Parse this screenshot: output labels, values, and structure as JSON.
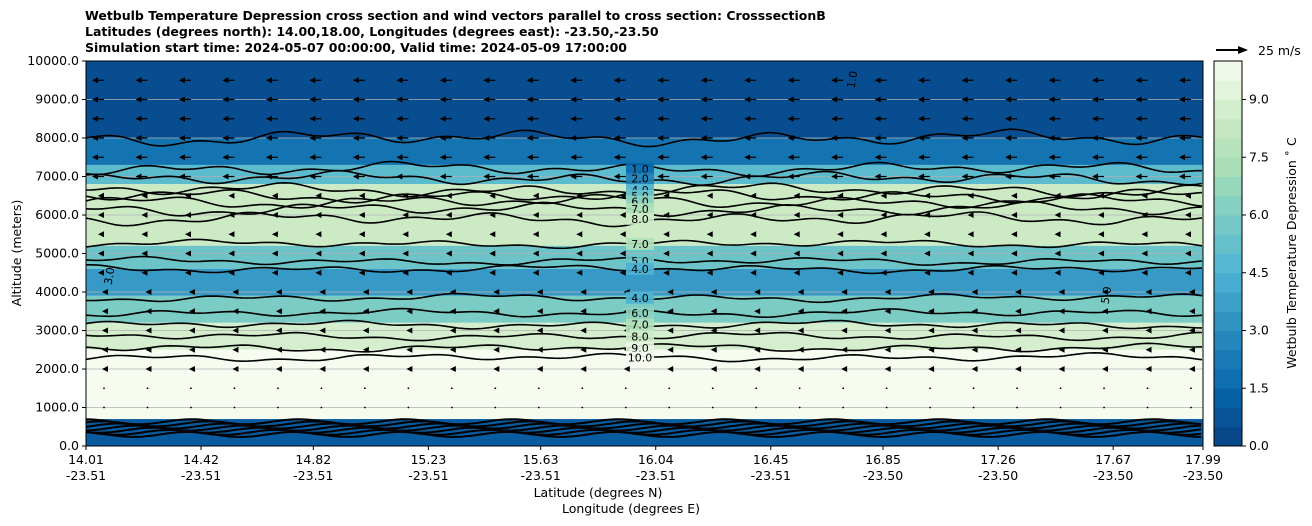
{
  "chart_data": {
    "type": "contour-cross-section",
    "title_lines": [
      "Wetbulb Temperature Depression cross section and wind vectors parallel to cross section: CrosssectionB",
      "Latitudes (degrees north): 14.00,18.00, Longitudes (degrees east): -23.50,-23.50",
      "Simulation start time: 2024-05-07 00:00:00, Valid time: 2024-05-09 17:00:00"
    ],
    "ylabel": "Altitude (meters)",
    "xlabel_lat": "Latitude (degrees N)",
    "xlabel_lon": "Longitude (degrees E)",
    "ylim": [
      0,
      10000
    ],
    "y_ticks": [
      "0.0",
      "1000.0",
      "2000.0",
      "3000.0",
      "4000.0",
      "5000.0",
      "6000.0",
      "7000.0",
      "8000.0",
      "9000.0",
      "10000.0"
    ],
    "x_ticks": [
      {
        "lat": "14.01",
        "lon": "-23.51"
      },
      {
        "lat": "14.42",
        "lon": "-23.51"
      },
      {
        "lat": "14.82",
        "lon": "-23.51"
      },
      {
        "lat": "15.23",
        "lon": "-23.51"
      },
      {
        "lat": "15.63",
        "lon": "-23.51"
      },
      {
        "lat": "16.04",
        "lon": "-23.51"
      },
      {
        "lat": "16.45",
        "lon": "-23.51"
      },
      {
        "lat": "16.85",
        "lon": "-23.50"
      },
      {
        "lat": "17.26",
        "lon": "-23.50"
      },
      {
        "lat": "17.67",
        "lon": "-23.50"
      },
      {
        "lat": "17.99",
        "lon": "-23.50"
      }
    ],
    "colorbar": {
      "label": "Wetbulb Temperature Depression ˚ C",
      "range": [
        0,
        10
      ],
      "ticks": [
        "0.0",
        "1.5",
        "3.0",
        "4.5",
        "6.0",
        "7.5",
        "9.0"
      ],
      "colormap": "GnBu_r",
      "levels": 20
    },
    "quiver_key": "25 m/s",
    "depression_layers": [
      {
        "alt_bottom": 8000,
        "alt_top": 10000,
        "value": 0.5
      },
      {
        "alt_bottom": 7300,
        "alt_top": 8000,
        "value": 2.0
      },
      {
        "alt_bottom": 6800,
        "alt_top": 7300,
        "value": 5.0
      },
      {
        "alt_bottom": 5200,
        "alt_top": 6800,
        "value": 8.5
      },
      {
        "alt_bottom": 4600,
        "alt_top": 5200,
        "value": 5.5
      },
      {
        "alt_bottom": 3900,
        "alt_top": 4600,
        "value": 3.5
      },
      {
        "alt_bottom": 3200,
        "alt_top": 3900,
        "value": 6.0
      },
      {
        "alt_bottom": 2500,
        "alt_top": 3200,
        "value": 8.8
      },
      {
        "alt_bottom": 700,
        "alt_top": 2500,
        "value": 10.0
      },
      {
        "alt_bottom": 0,
        "alt_top": 700,
        "value": 1.0
      }
    ],
    "contour_levels": [
      {
        "label": "1.0",
        "altitude": 7200
      },
      {
        "label": "2.0",
        "altitude": 6950
      },
      {
        "label": "4.0",
        "altitude": 6650
      },
      {
        "label": "5.0",
        "altitude": 6500
      },
      {
        "label": "6.0",
        "altitude": 6350
      },
      {
        "label": "7.0",
        "altitude": 6150
      },
      {
        "label": "8.0",
        "altitude": 5900
      },
      {
        "label": "7.0",
        "altitude": 5250
      },
      {
        "label": "5.0",
        "altitude": 4800
      },
      {
        "label": "4.0",
        "altitude": 4600
      },
      {
        "label": "4.0",
        "altitude": 3850
      },
      {
        "label": "6.0",
        "altitude": 3450
      },
      {
        "label": "7.0",
        "altitude": 3150
      },
      {
        "label": "8.0",
        "altitude": 2850
      },
      {
        "label": "9.0",
        "altitude": 2550
      },
      {
        "label": "10.0",
        "altitude": 2300
      }
    ],
    "side_labels": [
      {
        "label": "3.0",
        "altitude": 4400,
        "position": "left"
      },
      {
        "label": "5.0",
        "altitude": 3900,
        "position": "right"
      },
      {
        "label": "1.0",
        "altitude": 9500,
        "position": "top-right"
      }
    ]
  }
}
